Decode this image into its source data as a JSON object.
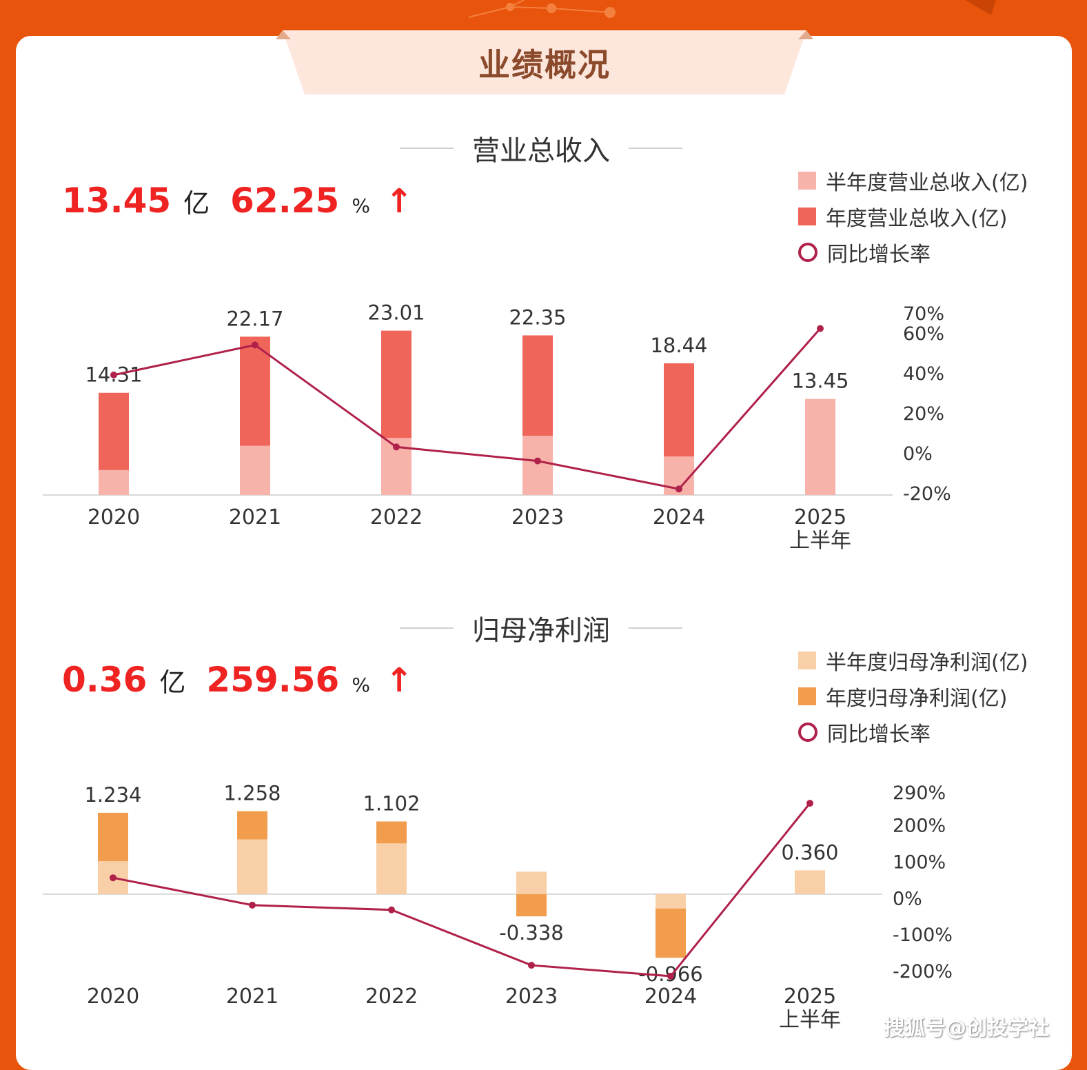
{
  "header": {
    "title": "业绩概况"
  },
  "watermark": "搜狐号@创投学社",
  "colors": {
    "background": "#e8540b",
    "kpi_red": "#f02323",
    "line": "#b0214a"
  },
  "sections": [
    {
      "title": "营业总收入",
      "kpi": {
        "value": "13.45",
        "unit": "亿",
        "growth": "62.25",
        "growth_unit": "%",
        "arrow": "↑"
      },
      "legend": [
        {
          "label": "半年度营业总收入(亿)",
          "color": "#f7b2aa",
          "kind": "bar"
        },
        {
          "label": "年度营业总收入(亿)",
          "color": "#ef655a",
          "kind": "bar"
        },
        {
          "label": "同比增长率",
          "color": "#b0214a",
          "kind": "line"
        }
      ]
    },
    {
      "title": "归母净利润",
      "kpi": {
        "value": "0.36",
        "unit": "亿",
        "growth": "259.56",
        "growth_unit": "%",
        "arrow": "↑"
      },
      "legend": [
        {
          "label": "半年度归母净利润(亿)",
          "color": "#f9cfa7",
          "kind": "bar"
        },
        {
          "label": "年度归母净利润(亿)",
          "color": "#f29d4e",
          "kind": "bar"
        },
        {
          "label": "同比增长率",
          "color": "#b0214a",
          "kind": "line"
        }
      ]
    }
  ],
  "chart_data": [
    {
      "type": "bar",
      "title": "营业总收入",
      "categories": [
        "2020",
        "2021",
        "2022",
        "2023",
        "2024",
        "2025\n上半年"
      ],
      "series": [
        {
          "name": "半年度营业总收入(亿)",
          "values": [
            3.5,
            6.9,
            8.0,
            8.3,
            5.4,
            13.45
          ],
          "color": "#f7b2aa"
        },
        {
          "name": "年度营业总收入(亿)",
          "values": [
            14.31,
            22.17,
            23.01,
            22.35,
            18.44,
            null
          ],
          "color": "#ef655a"
        },
        {
          "name": "同比增长率",
          "axis": "right",
          "values": [
            39,
            54,
            3,
            -4,
            -18,
            62.25
          ],
          "color": "#b0214a"
        }
      ],
      "data_labels": [
        "14.31",
        "22.17",
        "23.01",
        "22.35",
        "18.44",
        "13.45"
      ],
      "right_axis": {
        "ticks": [
          "70%",
          "60%",
          "40%",
          "20%",
          "0%",
          "-20%"
        ],
        "range": [
          -20,
          70
        ]
      },
      "left_range": [
        0,
        25
      ]
    },
    {
      "type": "bar",
      "title": "归母净利润",
      "categories": [
        "2020",
        "2021",
        "2022",
        "2023",
        "2024",
        "2025\n上半年"
      ],
      "series": [
        {
          "name": "半年度归母净利润(亿)",
          "values": [
            0.5,
            0.83,
            0.77,
            0.34,
            -0.22,
            0.36
          ],
          "color": "#f9cfa7"
        },
        {
          "name": "年度归母净利润(亿)",
          "values": [
            1.234,
            1.258,
            1.102,
            -0.338,
            -0.966,
            null
          ],
          "color": "#f29d4e"
        },
        {
          "name": "同比增长率",
          "axis": "right",
          "values": [
            55,
            -20,
            -33,
            -185,
            -215,
            259.56
          ],
          "color": "#b0214a"
        }
      ],
      "data_labels": [
        "1.234",
        "1.258",
        "1.102",
        "-0.338",
        "-0.966",
        "0.360"
      ],
      "right_axis": {
        "ticks": [
          "290%",
          "200%",
          "100%",
          "0%",
          "-100%",
          "-200%"
        ],
        "range": [
          -200,
          290
        ]
      },
      "left_range": [
        -1.1,
        1.4
      ]
    }
  ]
}
